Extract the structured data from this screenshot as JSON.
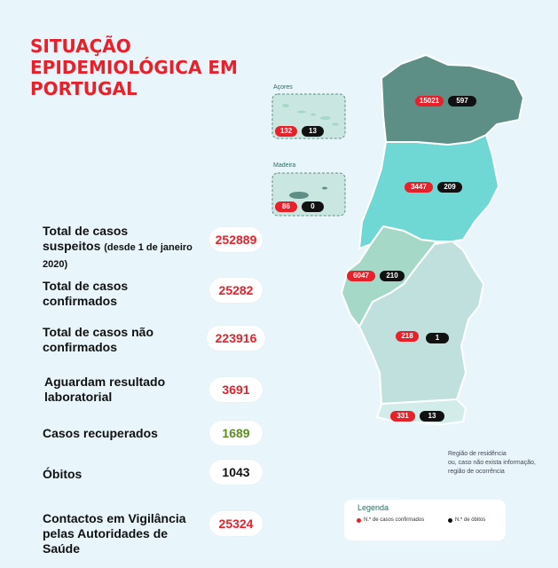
{
  "title": [
    "SITUAÇÃO",
    "EPIDEMIOLÓGICA EM",
    "PORTUGAL"
  ],
  "stats": [
    {
      "label": "Total de casos",
      "label2": "suspeitos",
      "label_small": "(desde 1 de janeiro",
      "label3": "2020)",
      "value": "252889",
      "color": "#e8202a"
    },
    {
      "label": "Total de casos",
      "label2": "confirmados",
      "value": "25282",
      "color": "#e8202a"
    },
    {
      "label": "Total de casos não",
      "label2": "confirmados",
      "value": "223916",
      "color": "#e8202a"
    },
    {
      "label": "Aguardam resultado",
      "label2": "laboratorial",
      "value": "3691",
      "color": "#e8202a"
    },
    {
      "label": "Casos recuperados",
      "value": "1689",
      "color": "#5b8f1d"
    },
    {
      "label": "Óbitos",
      "value": "1043",
      "color": "#111111"
    },
    {
      "label": "Contactos em Vigilância",
      "label2": "pelas Autoridades de",
      "label3": "Saúde",
      "value": "25324",
      "color": "#e8202a"
    }
  ],
  "islands": {
    "acores": {
      "name": "Açores",
      "cases": "132",
      "deaths": "13"
    },
    "madeira": {
      "name": "Madeira",
      "cases": "86",
      "deaths": "0"
    }
  },
  "regions": {
    "norte": {
      "cases": "15021",
      "deaths": "597",
      "color": "#5e8f86"
    },
    "centro": {
      "cases": "3447",
      "deaths": "209",
      "color": "#6fd8d4"
    },
    "lvt": {
      "cases": "6047",
      "deaths": "210",
      "color": "#a6d8c8"
    },
    "alentejo": {
      "cases": "218",
      "deaths": "1",
      "color": "#bfe0dc"
    },
    "algarve": {
      "cases": "331",
      "deaths": "13",
      "color": "#d2ece9"
    }
  },
  "note": [
    "Região de residência",
    "ou, caso não exista informação,",
    "região de ocorrência"
  ],
  "legend": {
    "title": "Legenda",
    "cases_label": "N.º de casos confirmados",
    "deaths_label": "N.º de óbitos",
    "cases_color": "#e8202a",
    "deaths_color": "#111111"
  }
}
